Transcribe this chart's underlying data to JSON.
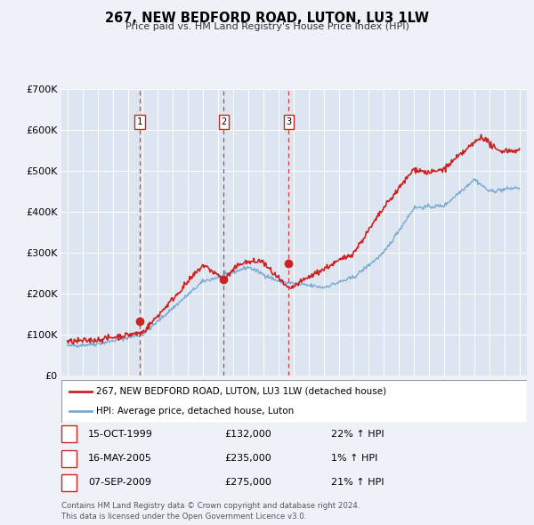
{
  "title": "267, NEW BEDFORD ROAD, LUTON, LU3 1LW",
  "subtitle": "Price paid vs. HM Land Registry's House Price Index (HPI)",
  "ylim": [
    0,
    700000
  ],
  "yticks": [
    0,
    100000,
    200000,
    300000,
    400000,
    500000,
    600000,
    700000
  ],
  "background_color": "#eef2f8",
  "plot_bg_color": "#dde6f0",
  "grid_color": "#ffffff",
  "red_line_color": "#cc2222",
  "blue_line_color": "#7aaad0",
  "transaction_dates": [
    1999.79,
    2005.37,
    2009.68
  ],
  "transaction_prices": [
    132000,
    235000,
    275000
  ],
  "transaction_labels": [
    "1",
    "2",
    "3"
  ],
  "vline_color": "#cc2222",
  "legend_entries": [
    "267, NEW BEDFORD ROAD, LUTON, LU3 1LW (detached house)",
    "HPI: Average price, detached house, Luton"
  ],
  "table_rows": [
    [
      "1",
      "15-OCT-1999",
      "£132,000",
      "22% ↑ HPI"
    ],
    [
      "2",
      "16-MAY-2005",
      "£235,000",
      "1% ↑ HPI"
    ],
    [
      "3",
      "07-SEP-2009",
      "£275,000",
      "21% ↑ HPI"
    ]
  ],
  "footnote": "Contains HM Land Registry data © Crown copyright and database right 2024.\nThis data is licensed under the Open Government Licence v3.0."
}
